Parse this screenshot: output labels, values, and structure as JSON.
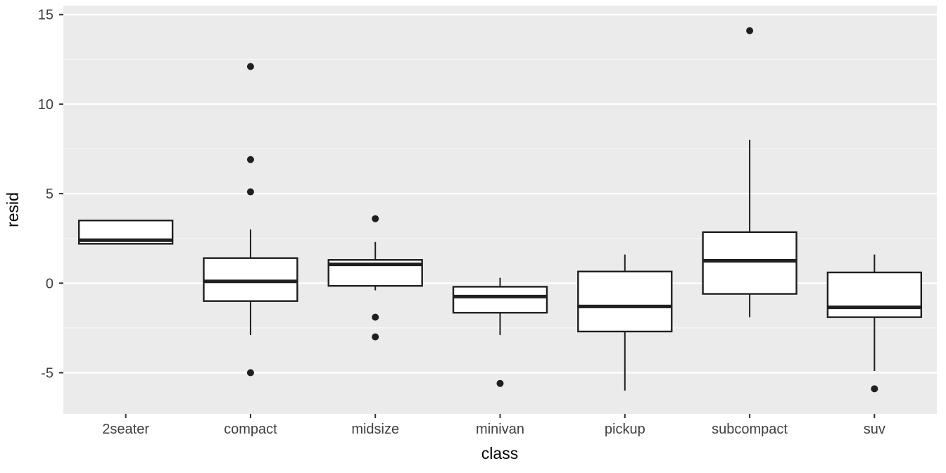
{
  "chart_data": {
    "type": "boxplot",
    "title": "",
    "xlabel": "class",
    "ylabel": "resid",
    "categories": [
      "2seater",
      "compact",
      "midsize",
      "minivan",
      "pickup",
      "subcompact",
      "suv"
    ],
    "yticks": [
      15,
      10,
      5,
      0,
      -5
    ],
    "yminor": [
      12.5,
      7.5,
      2.5,
      -2.5
    ],
    "ylim": [
      -7.3,
      15.5
    ],
    "grid": "major+minor",
    "legend": "none",
    "series": [
      {
        "label": "2seater",
        "whisker_low": 2.2,
        "q1": 2.2,
        "median": 2.4,
        "q3": 3.5,
        "whisker_high": 3.5,
        "outliers": []
      },
      {
        "label": "compact",
        "whisker_low": -2.9,
        "q1": -1.0,
        "median": 0.1,
        "q3": 1.4,
        "whisker_high": 3.0,
        "outliers": [
          12.1,
          6.9,
          5.1,
          -5.0
        ]
      },
      {
        "label": "midsize",
        "whisker_low": -0.4,
        "q1": -0.15,
        "median": 1.05,
        "q3": 1.3,
        "whisker_high": 2.3,
        "outliers": [
          3.6,
          -1.9,
          -3.0
        ]
      },
      {
        "label": "minivan",
        "whisker_low": -2.9,
        "q1": -1.65,
        "median": -0.75,
        "q3": -0.2,
        "whisker_high": 0.3,
        "outliers": [
          -5.6
        ]
      },
      {
        "label": "pickup",
        "whisker_low": -6.0,
        "q1": -2.7,
        "median": -1.3,
        "q3": 0.65,
        "whisker_high": 1.6,
        "outliers": []
      },
      {
        "label": "subcompact",
        "whisker_low": -1.9,
        "q1": -0.6,
        "median": 1.25,
        "q3": 2.85,
        "whisker_high": 8.0,
        "outliers": [
          14.1
        ]
      },
      {
        "label": "suv",
        "whisker_low": -4.9,
        "q1": -1.9,
        "median": -1.35,
        "q3": 0.6,
        "whisker_high": 1.6,
        "outliers": [
          -5.9
        ]
      }
    ]
  },
  "style": {
    "panel_bg": "#EBEBEB",
    "grid_major_color": "#FFFFFF",
    "grid_minor_color": "#F7F7F7",
    "box_fill": "#FFFFFF",
    "box_stroke": "#1F1F1F",
    "median_stroke": "#1F1F1F",
    "whisker_stroke": "#1F1F1F",
    "outlier_fill": "#1F1F1F",
    "tick_mark_color": "#333333",
    "axis_text_color": "#404040",
    "axis_title_color": "#000000"
  }
}
